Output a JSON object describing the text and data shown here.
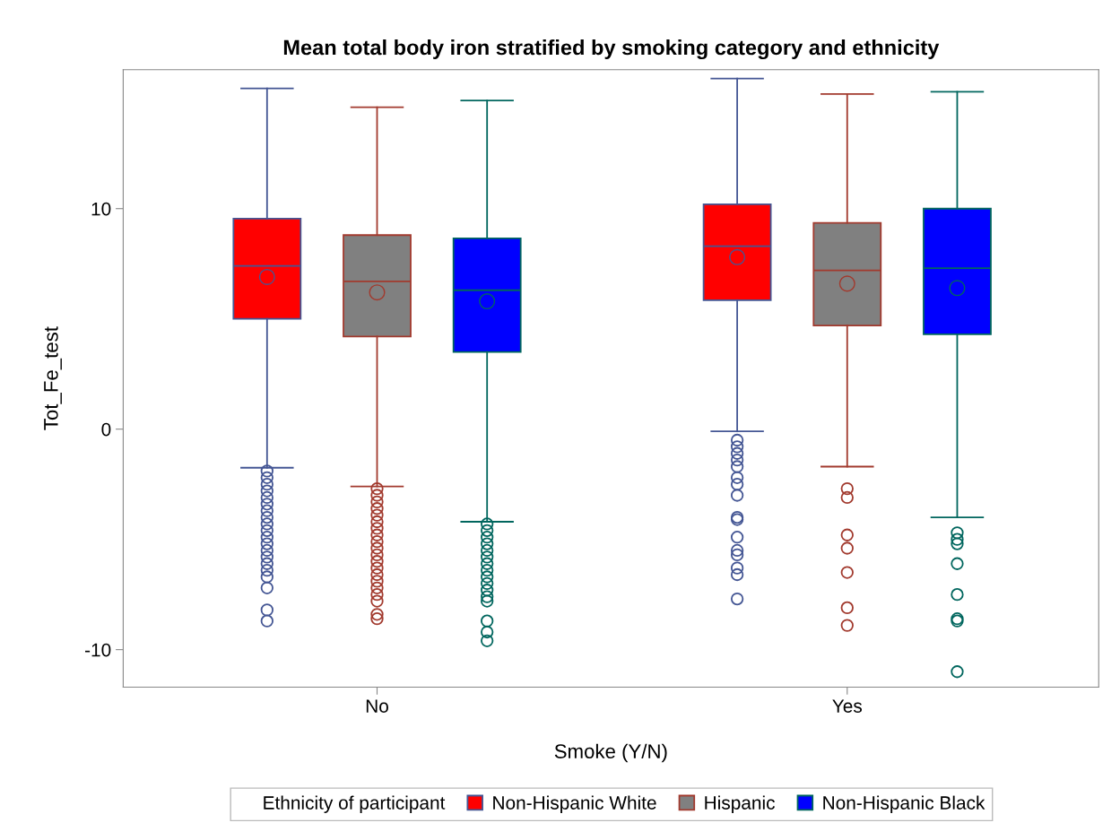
{
  "chart_data": {
    "type": "box",
    "title": "Mean total body iron stratified by smoking category and ethnicity",
    "xlabel": "Smoke (Y/N)",
    "ylabel": "Tot_Fe_test",
    "legend_title": "Ethnicity of participant",
    "categories": [
      "No",
      "Yes"
    ],
    "ylim": [
      -11.7,
      16.3
    ],
    "yticks": [
      -10,
      0,
      10
    ],
    "grid": false,
    "legend": "bottom",
    "marker": "circle",
    "series": [
      {
        "name": "Non-Hispanic White",
        "color": "#445694",
        "colors": [
          "#ff0000",
          "#ff0000"
        ],
        "boxes": [
          {
            "low": -1.75,
            "q1": 5.0,
            "median": 7.4,
            "q3": 9.55,
            "high": 15.45,
            "mean": 6.9,
            "outliers": [
              -1.9,
              -2.2,
              -2.5,
              -2.8,
              -3.1,
              -3.4,
              -3.7,
              -4.0,
              -4.3,
              -4.6,
              -4.9,
              -5.2,
              -5.5,
              -5.8,
              -6.1,
              -6.4,
              -6.7,
              -7.2,
              -8.2,
              -8.7
            ]
          },
          {
            "low": -0.1,
            "q1": 5.85,
            "median": 8.3,
            "q3": 10.2,
            "high": 15.9,
            "mean": 7.8,
            "outliers": [
              -0.5,
              -0.8,
              -1.1,
              -1.4,
              -1.7,
              -2.2,
              -2.5,
              -3.0,
              -4.0,
              -4.1,
              -4.9,
              -5.5,
              -5.7,
              -6.3,
              -6.6,
              -7.7
            ]
          }
        ]
      },
      {
        "name": "Hispanic",
        "color": "#a23a2e",
        "colors": [
          "#808080",
          "#808080"
        ],
        "boxes": [
          {
            "low": -2.6,
            "q1": 4.2,
            "median": 6.7,
            "q3": 8.8,
            "high": 14.6,
            "mean": 6.2,
            "outliers": [
              -2.7,
              -3.0,
              -3.3,
              -3.6,
              -3.9,
              -4.2,
              -4.5,
              -4.8,
              -5.1,
              -5.4,
              -5.7,
              -6.0,
              -6.3,
              -6.6,
              -6.9,
              -7.2,
              -7.5,
              -7.8,
              -8.4,
              -8.6
            ]
          },
          {
            "low": -1.7,
            "q1": 4.7,
            "median": 7.2,
            "q3": 9.35,
            "high": 15.2,
            "mean": 6.6,
            "outliers": [
              -2.7,
              -3.1,
              -4.8,
              -5.4,
              -6.5,
              -8.1,
              -8.9
            ]
          }
        ]
      },
      {
        "name": "Non-Hispanic Black",
        "color": "#01665e",
        "colors": [
          "#0000ff",
          "#0000ff"
        ],
        "boxes": [
          {
            "low": -4.2,
            "q1": 3.5,
            "median": 6.3,
            "q3": 8.65,
            "high": 14.9,
            "mean": 5.8,
            "outliers": [
              -4.3,
              -4.6,
              -4.9,
              -5.2,
              -5.5,
              -5.8,
              -6.1,
              -6.4,
              -6.7,
              -7.0,
              -7.3,
              -7.6,
              -7.8,
              -8.7,
              -9.2,
              -9.6
            ]
          },
          {
            "low": -4.0,
            "q1": 4.3,
            "median": 7.3,
            "q3": 10.0,
            "high": 15.3,
            "mean": 6.4,
            "outliers": [
              -4.7,
              -5.0,
              -5.2,
              -6.1,
              -7.5,
              -8.6,
              -8.7,
              -11.0
            ]
          }
        ]
      }
    ]
  }
}
